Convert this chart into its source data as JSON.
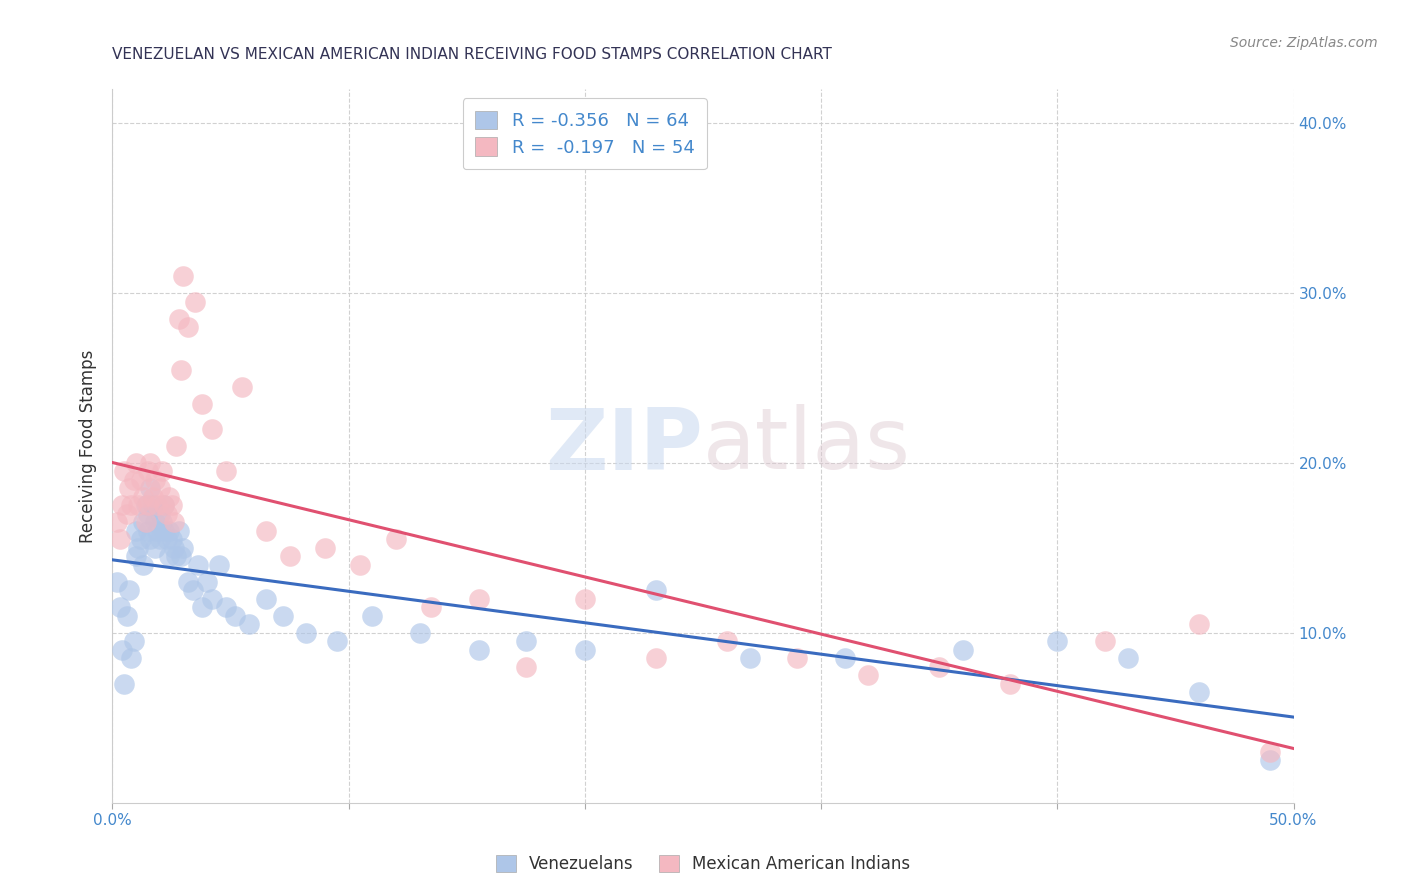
{
  "title": "VENEZUELAN VS MEXICAN AMERICAN INDIAN RECEIVING FOOD STAMPS CORRELATION CHART",
  "source": "Source: ZipAtlas.com",
  "ylabel": "Receiving Food Stamps",
  "xlim": [
    0.0,
    0.5
  ],
  "ylim": [
    0.0,
    0.42
  ],
  "xticks": [
    0.0,
    0.1,
    0.2,
    0.3,
    0.4,
    0.5
  ],
  "yticks": [
    0.1,
    0.2,
    0.3,
    0.4
  ],
  "xtick_labels": [
    "0.0%",
    "",
    "",
    "",
    "",
    "50.0%"
  ],
  "ytick_labels_right": [
    "10.0%",
    "20.0%",
    "30.0%",
    "40.0%"
  ],
  "background_color": "#ffffff",
  "grid_color": "#cccccc",
  "venezuelan_color": "#aec6e8",
  "mexican_color": "#f4b8c1",
  "venezuelan_line_color": "#3a6bbf",
  "mexican_line_color": "#e05070",
  "legend_r1": "R = -0.356   N = 64",
  "legend_r2": "R =  -0.197   N = 54",
  "legend_label1": "Venezuelans",
  "legend_label2": "Mexican American Indians",
  "watermark_zip": "ZIP",
  "watermark_atlas": "atlas",
  "title_color": "#333355",
  "axis_label_color": "#333333",
  "tick_color": "#4488cc",
  "venezuelan_scatter_x": [
    0.002,
    0.003,
    0.004,
    0.005,
    0.006,
    0.007,
    0.008,
    0.009,
    0.01,
    0.01,
    0.011,
    0.012,
    0.013,
    0.013,
    0.014,
    0.015,
    0.015,
    0.016,
    0.016,
    0.017,
    0.018,
    0.018,
    0.019,
    0.02,
    0.02,
    0.021,
    0.022,
    0.022,
    0.023,
    0.024,
    0.024,
    0.025,
    0.026,
    0.027,
    0.028,
    0.029,
    0.03,
    0.032,
    0.034,
    0.036,
    0.038,
    0.04,
    0.042,
    0.045,
    0.048,
    0.052,
    0.058,
    0.065,
    0.072,
    0.082,
    0.095,
    0.11,
    0.13,
    0.155,
    0.175,
    0.2,
    0.23,
    0.27,
    0.31,
    0.36,
    0.4,
    0.43,
    0.46,
    0.49
  ],
  "venezuelan_scatter_y": [
    0.13,
    0.115,
    0.09,
    0.07,
    0.11,
    0.125,
    0.085,
    0.095,
    0.145,
    0.16,
    0.15,
    0.155,
    0.165,
    0.14,
    0.175,
    0.16,
    0.17,
    0.155,
    0.185,
    0.175,
    0.165,
    0.15,
    0.16,
    0.17,
    0.155,
    0.165,
    0.16,
    0.175,
    0.155,
    0.16,
    0.145,
    0.155,
    0.15,
    0.145,
    0.16,
    0.145,
    0.15,
    0.13,
    0.125,
    0.14,
    0.115,
    0.13,
    0.12,
    0.14,
    0.115,
    0.11,
    0.105,
    0.12,
    0.11,
    0.1,
    0.095,
    0.11,
    0.1,
    0.09,
    0.095,
    0.09,
    0.125,
    0.085,
    0.085,
    0.09,
    0.095,
    0.085,
    0.065,
    0.025
  ],
  "mexican_scatter_x": [
    0.002,
    0.003,
    0.004,
    0.005,
    0.006,
    0.007,
    0.008,
    0.009,
    0.01,
    0.011,
    0.012,
    0.013,
    0.014,
    0.015,
    0.015,
    0.016,
    0.017,
    0.018,
    0.019,
    0.02,
    0.021,
    0.022,
    0.023,
    0.024,
    0.025,
    0.026,
    0.027,
    0.028,
    0.029,
    0.03,
    0.032,
    0.035,
    0.038,
    0.042,
    0.048,
    0.055,
    0.065,
    0.075,
    0.09,
    0.105,
    0.12,
    0.135,
    0.155,
    0.175,
    0.2,
    0.23,
    0.26,
    0.29,
    0.32,
    0.35,
    0.38,
    0.42,
    0.46,
    0.49
  ],
  "mexican_scatter_y": [
    0.165,
    0.155,
    0.175,
    0.195,
    0.17,
    0.185,
    0.175,
    0.19,
    0.2,
    0.175,
    0.19,
    0.18,
    0.165,
    0.195,
    0.175,
    0.2,
    0.18,
    0.19,
    0.175,
    0.185,
    0.195,
    0.175,
    0.17,
    0.18,
    0.175,
    0.165,
    0.21,
    0.285,
    0.255,
    0.31,
    0.28,
    0.295,
    0.235,
    0.22,
    0.195,
    0.245,
    0.16,
    0.145,
    0.15,
    0.14,
    0.155,
    0.115,
    0.12,
    0.08,
    0.12,
    0.085,
    0.095,
    0.085,
    0.075,
    0.08,
    0.07,
    0.095,
    0.105,
    0.03
  ]
}
